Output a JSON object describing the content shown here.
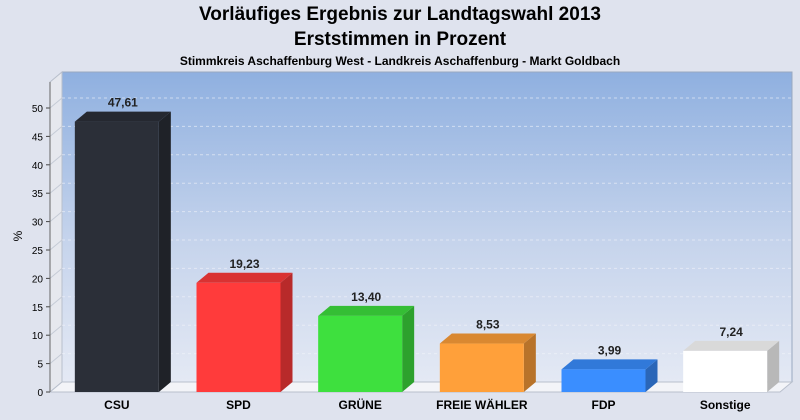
{
  "chart_data": {
    "type": "bar",
    "title": "Vorläufiges Ergebnis zur Landtagswahl 2013",
    "subtitle": "Erststimmen in Prozent",
    "subsubtitle": "Stimmkreis Aschaffenburg West - Landkreis Aschaffenburg - Markt Goldbach",
    "xlabel": "",
    "ylabel": "%",
    "ylim": [
      0,
      55
    ],
    "yticks": [
      0,
      5,
      10,
      15,
      20,
      25,
      30,
      35,
      40,
      45,
      50
    ],
    "grid": true,
    "categories": [
      "CSU",
      "SPD",
      "GRÜNE",
      "FREIE WÄHLER",
      "FDP",
      "Sonstige"
    ],
    "values": [
      47.61,
      19.23,
      13.4,
      8.53,
      3.99,
      7.24
    ],
    "value_labels": [
      "47,61",
      "19,23",
      "13,40",
      "8,53",
      "3,99",
      "7,24"
    ],
    "colors": [
      "#2b2f38",
      "#ff3b3b",
      "#3ee03e",
      "#ffa03a",
      "#3a8eff",
      "#ffffff"
    ]
  }
}
